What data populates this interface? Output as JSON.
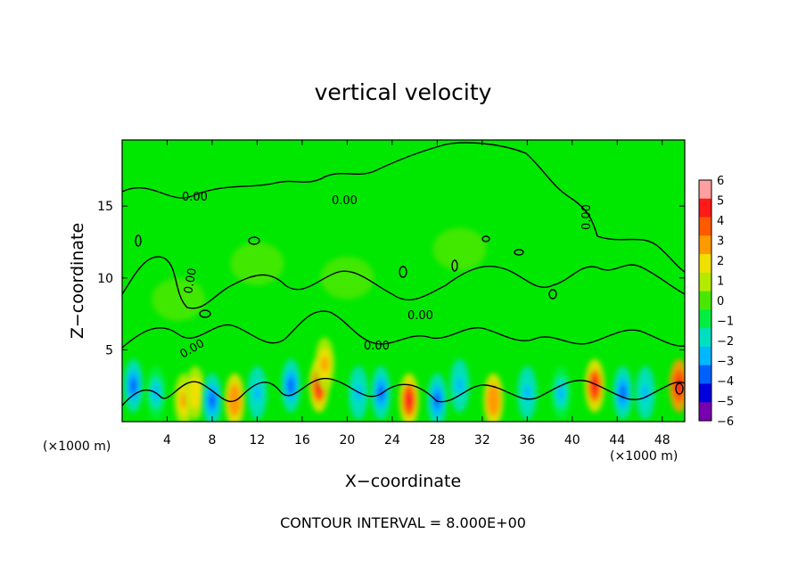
{
  "chart_data": {
    "type": "heatmap",
    "title": "vertical velocity",
    "xlabel": "X−coordinate",
    "ylabel": "Z−coordinate",
    "x_unit_left": "(×1000 m)",
    "x_unit_right": "(×1000 m)",
    "xlim": [
      0,
      50
    ],
    "ylim": [
      0,
      19.6
    ],
    "x_ticks": [
      4,
      8,
      12,
      16,
      20,
      24,
      28,
      32,
      36,
      40,
      44,
      48
    ],
    "y_ticks": [
      5,
      10,
      15
    ],
    "colorbar": {
      "range": [
        -6,
        6
      ],
      "ticks": [
        "6",
        "5",
        "4",
        "3",
        "2",
        "1",
        "0",
        "−1",
        "−2",
        "−3",
        "−4",
        "−5",
        "−6"
      ],
      "colors": [
        "#ffa0a0",
        "#ff1a1a",
        "#ff5a00",
        "#ff9a00",
        "#f0e000",
        "#b4ea00",
        "#48e800",
        "#00ee40",
        "#00e0c0",
        "#00b8ff",
        "#0060ff",
        "#0000dd",
        "#7800b0"
      ]
    },
    "contour_labels": [
      "0.00",
      "0.00",
      "0.00",
      "0.00",
      "0.00",
      "0.00",
      "0.00"
    ],
    "cells": [
      {
        "x": 1,
        "z": 2.5,
        "w": -3.5
      },
      {
        "x": 3,
        "z": 2.0,
        "w": -2.5
      },
      {
        "x": 5.5,
        "z": 1.5,
        "w": 3.0
      },
      {
        "x": 6.5,
        "z": 2.0,
        "w": 2.0
      },
      {
        "x": 8,
        "z": 1.5,
        "w": -4.0
      },
      {
        "x": 10,
        "z": 1.5,
        "w": 3.5
      },
      {
        "x": 12,
        "z": 2.0,
        "w": -3.0
      },
      {
        "x": 15,
        "z": 2.5,
        "w": -3.5
      },
      {
        "x": 17.5,
        "z": 2.5,
        "w": 5.0
      },
      {
        "x": 18,
        "z": 4.0,
        "w": 3.0
      },
      {
        "x": 21,
        "z": 2.0,
        "w": -3.0
      },
      {
        "x": 23,
        "z": 2.0,
        "w": -3.5
      },
      {
        "x": 25.5,
        "z": 1.5,
        "w": 5.0
      },
      {
        "x": 28,
        "z": 1.5,
        "w": -4.0
      },
      {
        "x": 30,
        "z": 2.5,
        "w": -3.0
      },
      {
        "x": 33,
        "z": 1.5,
        "w": 3.5
      },
      {
        "x": 36,
        "z": 2.0,
        "w": -3.0
      },
      {
        "x": 39,
        "z": 2.0,
        "w": -2.5
      },
      {
        "x": 42,
        "z": 2.5,
        "w": 5.0
      },
      {
        "x": 44.5,
        "z": 2.0,
        "w": -3.5
      },
      {
        "x": 46.5,
        "z": 2.0,
        "w": -3.0
      },
      {
        "x": 49.5,
        "z": 2.5,
        "w": 5.5
      },
      {
        "x": 5,
        "z": 8.5,
        "w": 0.8
      },
      {
        "x": 12,
        "z": 11,
        "w": 0.8
      },
      {
        "x": 20,
        "z": 10,
        "w": 0.6
      },
      {
        "x": 30,
        "z": 12,
        "w": 0.5
      }
    ],
    "grid": false,
    "footer": "CONTOUR INTERVAL = 8.000E+00"
  },
  "colors": {
    "background": "#ffffff",
    "field_base": "#00e800",
    "line": "#000000"
  }
}
